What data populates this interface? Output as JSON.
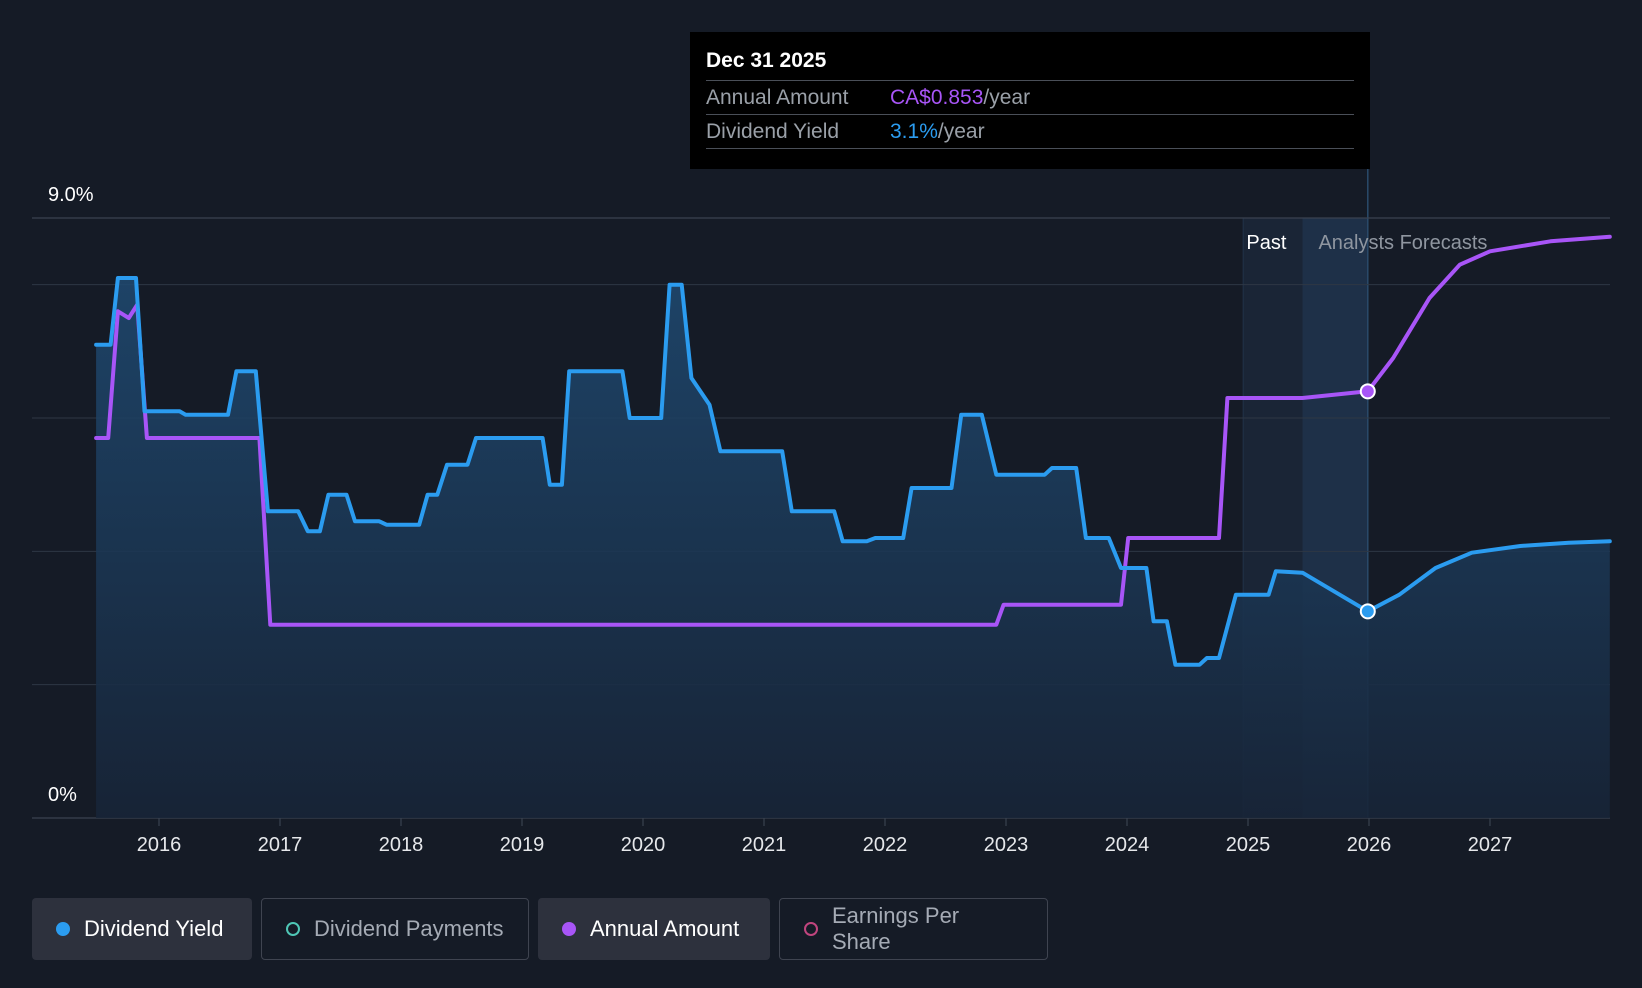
{
  "tooltip": {
    "date": "Dec 31 2025",
    "annual_label": "Annual Amount",
    "annual_value": "CA$0.853",
    "annual_unit": "/year",
    "yield_label": "Dividend Yield",
    "yield_value": "3.1%",
    "yield_unit": "/year"
  },
  "legend": [
    {
      "label": "Dividend Yield",
      "color": "#2b9cf0",
      "active": true,
      "filled": true
    },
    {
      "label": "Dividend Payments",
      "color": "#4fc7b6",
      "active": false,
      "filled": false
    },
    {
      "label": "Annual Amount",
      "color": "#a855f7",
      "active": true,
      "filled": true
    },
    {
      "label": "Earnings Per Share",
      "color": "#c0457e",
      "active": false,
      "filled": false
    }
  ],
  "chart_data": {
    "type": "line",
    "y_top_label": "9.0%",
    "y_bottom_label": "0%",
    "ylim": [
      0,
      9.0
    ],
    "x_ticks": [
      "2016",
      "2017",
      "2018",
      "2019",
      "2020",
      "2021",
      "2022",
      "2023",
      "2024",
      "2025",
      "2026",
      "2027"
    ],
    "past_label": "Past",
    "forecast_label": "Analysts Forecasts",
    "past_range": [
      2024.96,
      2025.45
    ],
    "forecast_range": [
      2025.45,
      2025.99
    ],
    "colors": {
      "yield": "#2b9cf0",
      "annual": "#a855f7",
      "grid": "#2e3744",
      "bg": "#151b26"
    },
    "series": [
      {
        "name": "Dividend Yield",
        "unit": "%",
        "points": [
          [
            2015.48,
            7.1
          ],
          [
            2015.6,
            7.1
          ],
          [
            2015.66,
            8.1
          ],
          [
            2015.81,
            8.1
          ],
          [
            2015.88,
            6.1
          ],
          [
            2016.17,
            6.1
          ],
          [
            2016.22,
            6.05
          ],
          [
            2016.57,
            6.05
          ],
          [
            2016.64,
            6.7
          ],
          [
            2016.8,
            6.7
          ],
          [
            2016.9,
            4.6
          ],
          [
            2017.15,
            4.6
          ],
          [
            2017.23,
            4.3
          ],
          [
            2017.33,
            4.3
          ],
          [
            2017.4,
            4.85
          ],
          [
            2017.55,
            4.85
          ],
          [
            2017.62,
            4.45
          ],
          [
            2017.82,
            4.45
          ],
          [
            2017.88,
            4.4
          ],
          [
            2018.15,
            4.4
          ],
          [
            2018.22,
            4.85
          ],
          [
            2018.3,
            4.85
          ],
          [
            2018.38,
            5.3
          ],
          [
            2018.55,
            5.3
          ],
          [
            2018.62,
            5.7
          ],
          [
            2019.17,
            5.7
          ],
          [
            2019.23,
            5.0
          ],
          [
            2019.33,
            5.0
          ],
          [
            2019.39,
            6.7
          ],
          [
            2019.83,
            6.7
          ],
          [
            2019.89,
            6.0
          ],
          [
            2020.15,
            6.0
          ],
          [
            2020.22,
            8.0
          ],
          [
            2020.32,
            8.0
          ],
          [
            2020.4,
            6.6
          ],
          [
            2020.55,
            6.2
          ],
          [
            2020.64,
            5.5
          ],
          [
            2021.15,
            5.5
          ],
          [
            2021.23,
            4.6
          ],
          [
            2021.58,
            4.6
          ],
          [
            2021.65,
            4.15
          ],
          [
            2021.85,
            4.15
          ],
          [
            2021.92,
            4.2
          ],
          [
            2022.15,
            4.2
          ],
          [
            2022.22,
            4.95
          ],
          [
            2022.55,
            4.95
          ],
          [
            2022.63,
            6.05
          ],
          [
            2022.8,
            6.05
          ],
          [
            2022.92,
            5.15
          ],
          [
            2023.32,
            5.15
          ],
          [
            2023.38,
            5.25
          ],
          [
            2023.58,
            5.25
          ],
          [
            2023.66,
            4.2
          ],
          [
            2023.85,
            4.2
          ],
          [
            2023.95,
            3.75
          ],
          [
            2024.03,
            3.75
          ],
          [
            2024.16,
            3.75
          ],
          [
            2024.22,
            2.95
          ],
          [
            2024.33,
            2.95
          ],
          [
            2024.4,
            2.3
          ],
          [
            2024.6,
            2.3
          ],
          [
            2024.66,
            2.4
          ],
          [
            2024.76,
            2.4
          ],
          [
            2024.9,
            3.35
          ],
          [
            2025.17,
            3.35
          ],
          [
            2025.23,
            3.7
          ],
          [
            2025.45,
            3.68
          ],
          [
            2025.99,
            3.1
          ],
          [
            2026.25,
            3.35
          ],
          [
            2026.55,
            3.75
          ],
          [
            2026.85,
            3.98
          ],
          [
            2027.25,
            4.08
          ],
          [
            2027.65,
            4.13
          ],
          [
            2027.99,
            4.15
          ]
        ]
      },
      {
        "name": "Annual Amount",
        "unit": "scaled",
        "points": [
          [
            2015.48,
            5.7
          ],
          [
            2015.58,
            5.7
          ],
          [
            2015.66,
            7.6
          ],
          [
            2015.75,
            7.5
          ],
          [
            2015.82,
            7.7
          ],
          [
            2015.9,
            5.7
          ],
          [
            2016.83,
            5.7
          ],
          [
            2016.92,
            2.9
          ],
          [
            2022.92,
            2.9
          ],
          [
            2022.98,
            3.2
          ],
          [
            2023.95,
            3.2
          ],
          [
            2024.01,
            4.2
          ],
          [
            2024.76,
            4.2
          ],
          [
            2024.83,
            6.3
          ],
          [
            2025.45,
            6.3
          ],
          [
            2025.99,
            6.4
          ],
          [
            2026.2,
            6.9
          ],
          [
            2026.5,
            7.8
          ],
          [
            2026.75,
            8.3
          ],
          [
            2027.0,
            8.5
          ],
          [
            2027.5,
            8.65
          ],
          [
            2027.99,
            8.72
          ]
        ]
      }
    ],
    "highlight": {
      "x": 2025.99,
      "yield": 3.1,
      "annual": 6.4
    }
  }
}
